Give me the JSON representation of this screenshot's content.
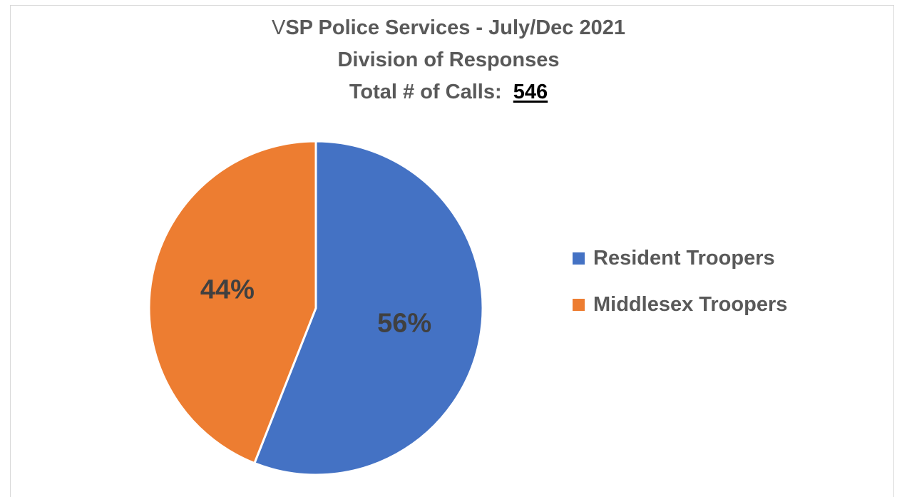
{
  "chart_data": {
    "type": "pie",
    "title": {
      "prefix": "V",
      "rest": "SP Police Services - July/Dec 2021",
      "line2": "Division of Responses",
      "line3_label": "Total # of Calls:",
      "line3_value": "546"
    },
    "slices": [
      {
        "name": "Resident Troopers",
        "value": 56,
        "label": "56%",
        "color": "#4472C4"
      },
      {
        "name": "Middlesex Troopers",
        "value": 44,
        "label": "44%",
        "color": "#ED7D31"
      }
    ],
    "legend_position": "right",
    "data_label_color": "#404040"
  }
}
